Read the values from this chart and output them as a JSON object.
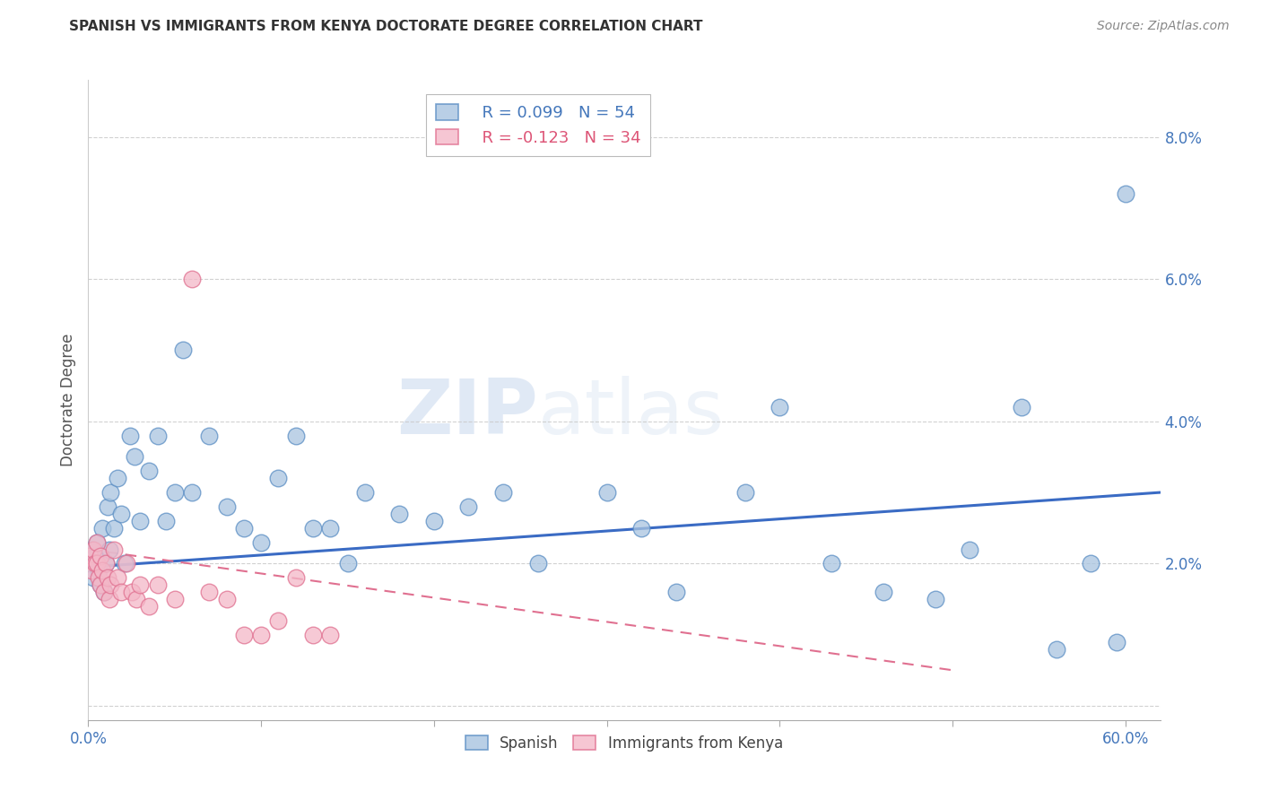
{
  "title": "SPANISH VS IMMIGRANTS FROM KENYA DOCTORATE DEGREE CORRELATION CHART",
  "source": "Source: ZipAtlas.com",
  "ylabel": "Doctorate Degree",
  "xlim": [
    0.0,
    0.62
  ],
  "ylim": [
    -0.002,
    0.088
  ],
  "xticks": [
    0.0,
    0.1,
    0.2,
    0.3,
    0.4,
    0.5,
    0.6
  ],
  "xticklabels": [
    "0.0%",
    "",
    "",
    "",
    "",
    "",
    "60.0%"
  ],
  "yticks": [
    0.0,
    0.02,
    0.04,
    0.06,
    0.08
  ],
  "yticklabels": [
    "",
    "2.0%",
    "4.0%",
    "6.0%",
    "8.0%"
  ],
  "blue_color": "#a8c4e0",
  "blue_edge_color": "#5b8ec4",
  "pink_color": "#f4b8c8",
  "pink_edge_color": "#e07090",
  "blue_line_color": "#3a6bc4",
  "pink_line_color": "#e07090",
  "legend_r_blue": "R = 0.099",
  "legend_n_blue": "N = 54",
  "legend_r_pink": "R = -0.123",
  "legend_n_pink": "N = 34",
  "watermark_zip": "ZIP",
  "watermark_atlas": "atlas",
  "blue_points_x": [
    0.002,
    0.003,
    0.004,
    0.005,
    0.006,
    0.007,
    0.008,
    0.009,
    0.01,
    0.011,
    0.012,
    0.013,
    0.015,
    0.017,
    0.019,
    0.021,
    0.024,
    0.027,
    0.03,
    0.035,
    0.04,
    0.045,
    0.05,
    0.055,
    0.06,
    0.07,
    0.08,
    0.09,
    0.1,
    0.11,
    0.12,
    0.13,
    0.14,
    0.15,
    0.16,
    0.18,
    0.2,
    0.22,
    0.24,
    0.26,
    0.3,
    0.32,
    0.34,
    0.38,
    0.4,
    0.43,
    0.46,
    0.49,
    0.51,
    0.54,
    0.56,
    0.58,
    0.595,
    0.6
  ],
  "blue_points_y": [
    0.022,
    0.018,
    0.021,
    0.023,
    0.019,
    0.017,
    0.025,
    0.016,
    0.02,
    0.028,
    0.022,
    0.03,
    0.025,
    0.032,
    0.027,
    0.02,
    0.038,
    0.035,
    0.026,
    0.033,
    0.038,
    0.026,
    0.03,
    0.05,
    0.03,
    0.038,
    0.028,
    0.025,
    0.023,
    0.032,
    0.038,
    0.025,
    0.025,
    0.02,
    0.03,
    0.027,
    0.026,
    0.028,
    0.03,
    0.02,
    0.03,
    0.025,
    0.016,
    0.03,
    0.042,
    0.02,
    0.016,
    0.015,
    0.022,
    0.042,
    0.008,
    0.02,
    0.009,
    0.072
  ],
  "pink_points_x": [
    0.001,
    0.002,
    0.003,
    0.004,
    0.005,
    0.005,
    0.006,
    0.007,
    0.007,
    0.008,
    0.009,
    0.01,
    0.011,
    0.012,
    0.013,
    0.015,
    0.017,
    0.019,
    0.022,
    0.025,
    0.028,
    0.03,
    0.035,
    0.04,
    0.05,
    0.06,
    0.07,
    0.08,
    0.09,
    0.1,
    0.11,
    0.12,
    0.13,
    0.14
  ],
  "pink_points_y": [
    0.021,
    0.019,
    0.022,
    0.02,
    0.02,
    0.023,
    0.018,
    0.021,
    0.017,
    0.019,
    0.016,
    0.02,
    0.018,
    0.015,
    0.017,
    0.022,
    0.018,
    0.016,
    0.02,
    0.016,
    0.015,
    0.017,
    0.014,
    0.017,
    0.015,
    0.06,
    0.016,
    0.015,
    0.01,
    0.01,
    0.012,
    0.018,
    0.01,
    0.01
  ],
  "blue_trend_x": [
    0.0,
    0.62
  ],
  "blue_trend_y": [
    0.0195,
    0.03
  ],
  "pink_trend_x": [
    0.0,
    0.5
  ],
  "pink_trend_y": [
    0.022,
    0.005
  ]
}
